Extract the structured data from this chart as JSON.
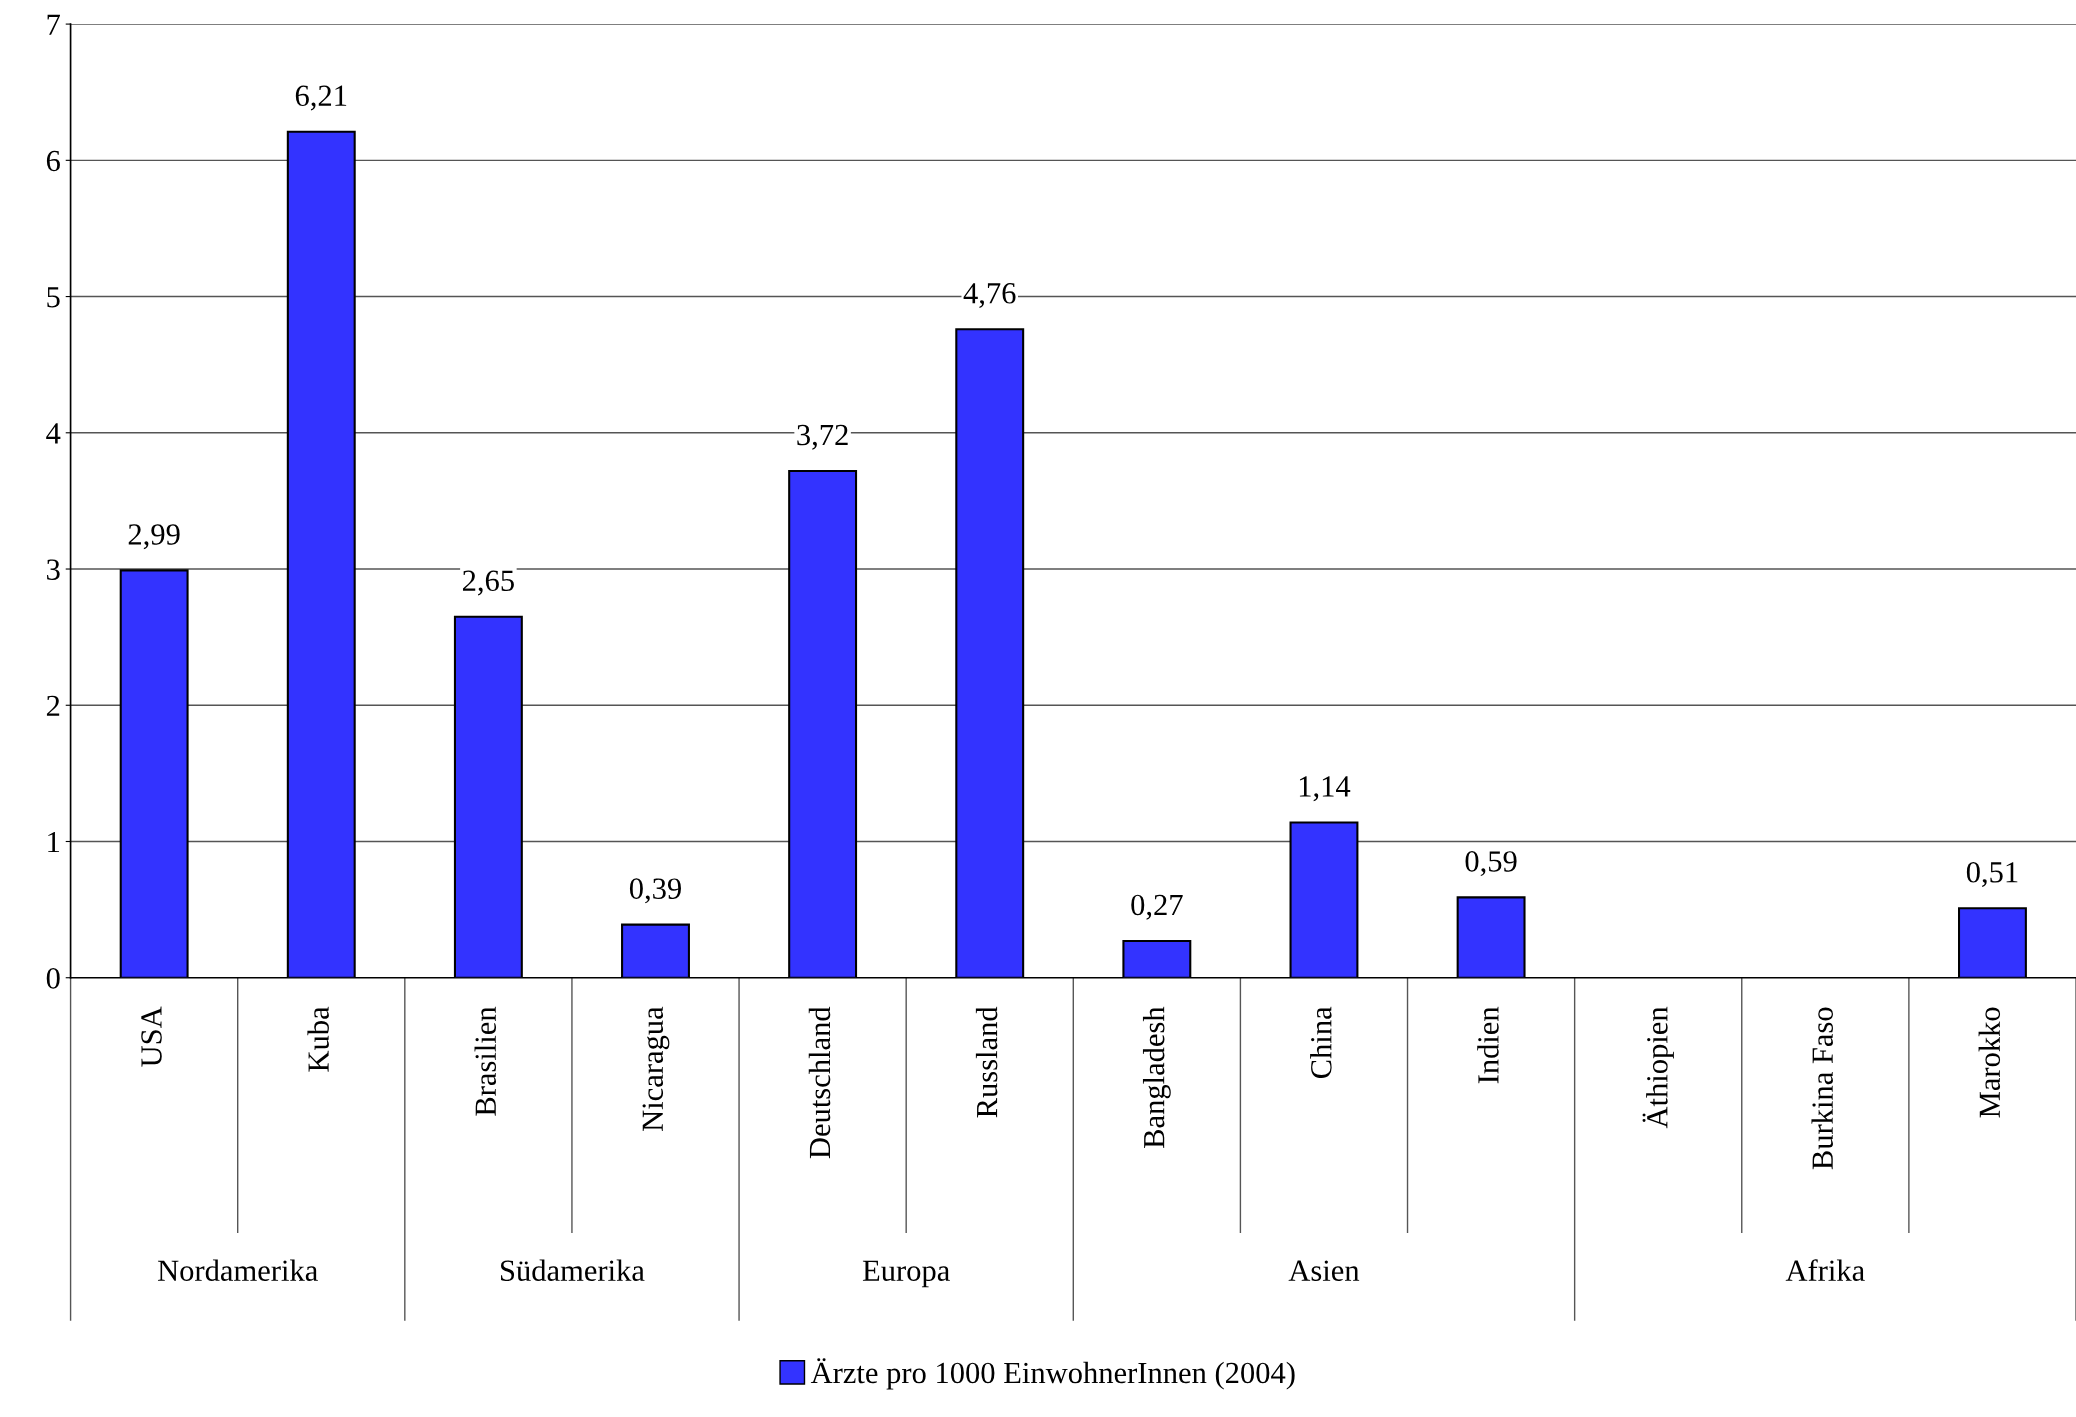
{
  "chart_data": {
    "type": "bar",
    "categories": [
      "USA",
      "Kuba",
      "Brasilien",
      "Nicaragua",
      "Deutschland",
      "Russland",
      "Bangladesh",
      "China",
      "Indien",
      "Äthiopien",
      "Burkina Faso",
      "Marokko"
    ],
    "series": [
      {
        "name": "Ärzte pro 1000 EinwohnerInnen (2004)",
        "color": "#3333ff",
        "values": [
          2.99,
          6.21,
          2.65,
          0.39,
          3.72,
          4.76,
          0.27,
          1.14,
          0.59,
          null,
          null,
          0.51
        ],
        "value_labels": [
          "2,99",
          "6,21",
          "2,65",
          "0,39",
          "3,72",
          "4,76",
          "0,27",
          "1,14",
          "0,59",
          null,
          null,
          "0,51"
        ]
      }
    ],
    "ylim": [
      0,
      7
    ],
    "yticks": [
      0,
      1,
      2,
      3,
      4,
      5,
      6,
      7
    ],
    "grid": "y",
    "legend": "bottom",
    "annotations": [
      "Nordamerika",
      "Südamerika",
      "Europa",
      "Asien",
      "Afrika"
    ]
  }
}
